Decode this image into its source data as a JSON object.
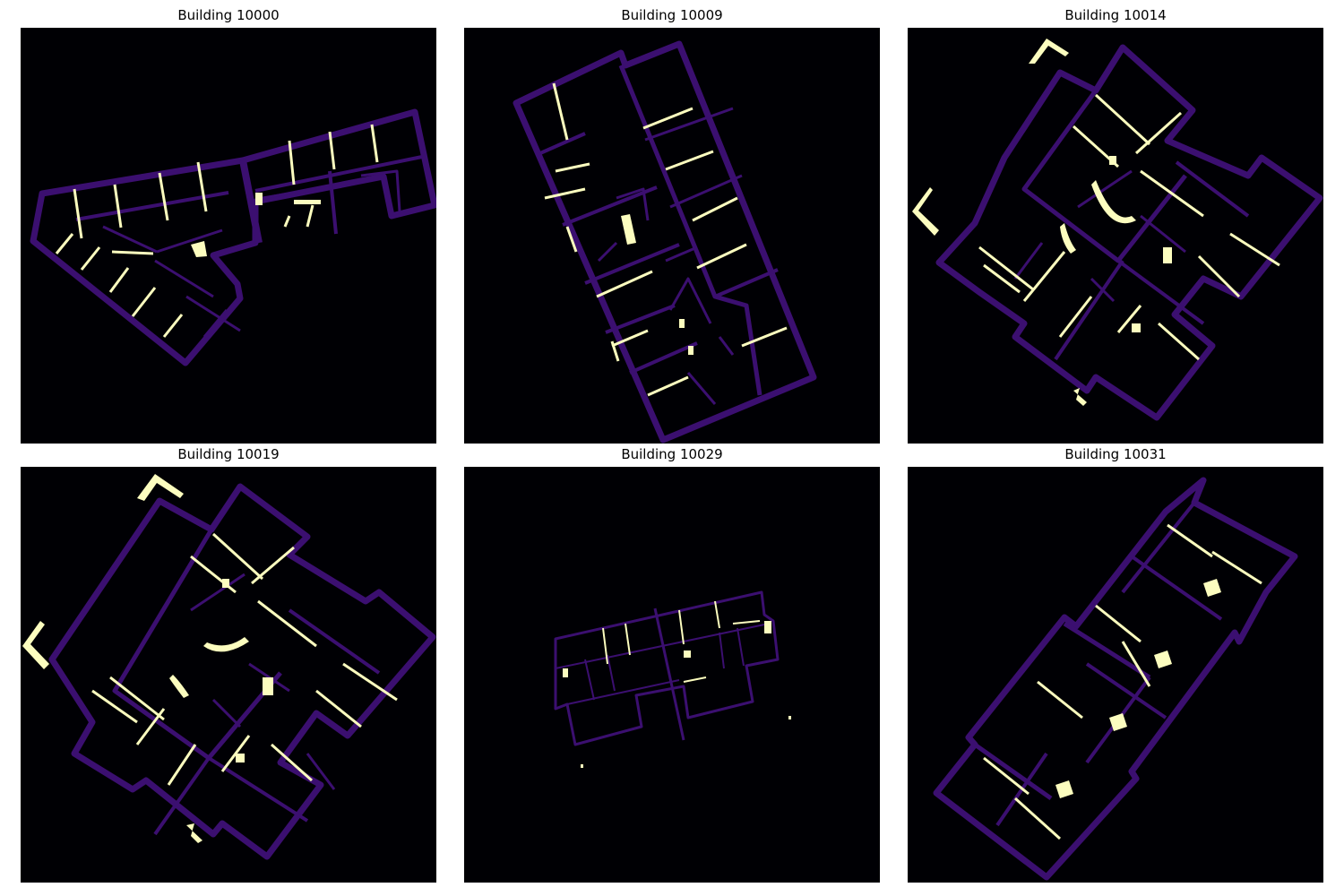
{
  "figure": {
    "panels": [
      {
        "title": "Building 10000"
      },
      {
        "title": "Building 10009"
      },
      {
        "title": "Building 10014"
      },
      {
        "title": "Building 10019"
      },
      {
        "title": "Building 10029"
      },
      {
        "title": "Building 10031"
      }
    ]
  },
  "colors": {
    "background": "#000004",
    "wall": "#3b0f70",
    "opening": "#fcfdbf",
    "canvas": "#ffffff"
  }
}
